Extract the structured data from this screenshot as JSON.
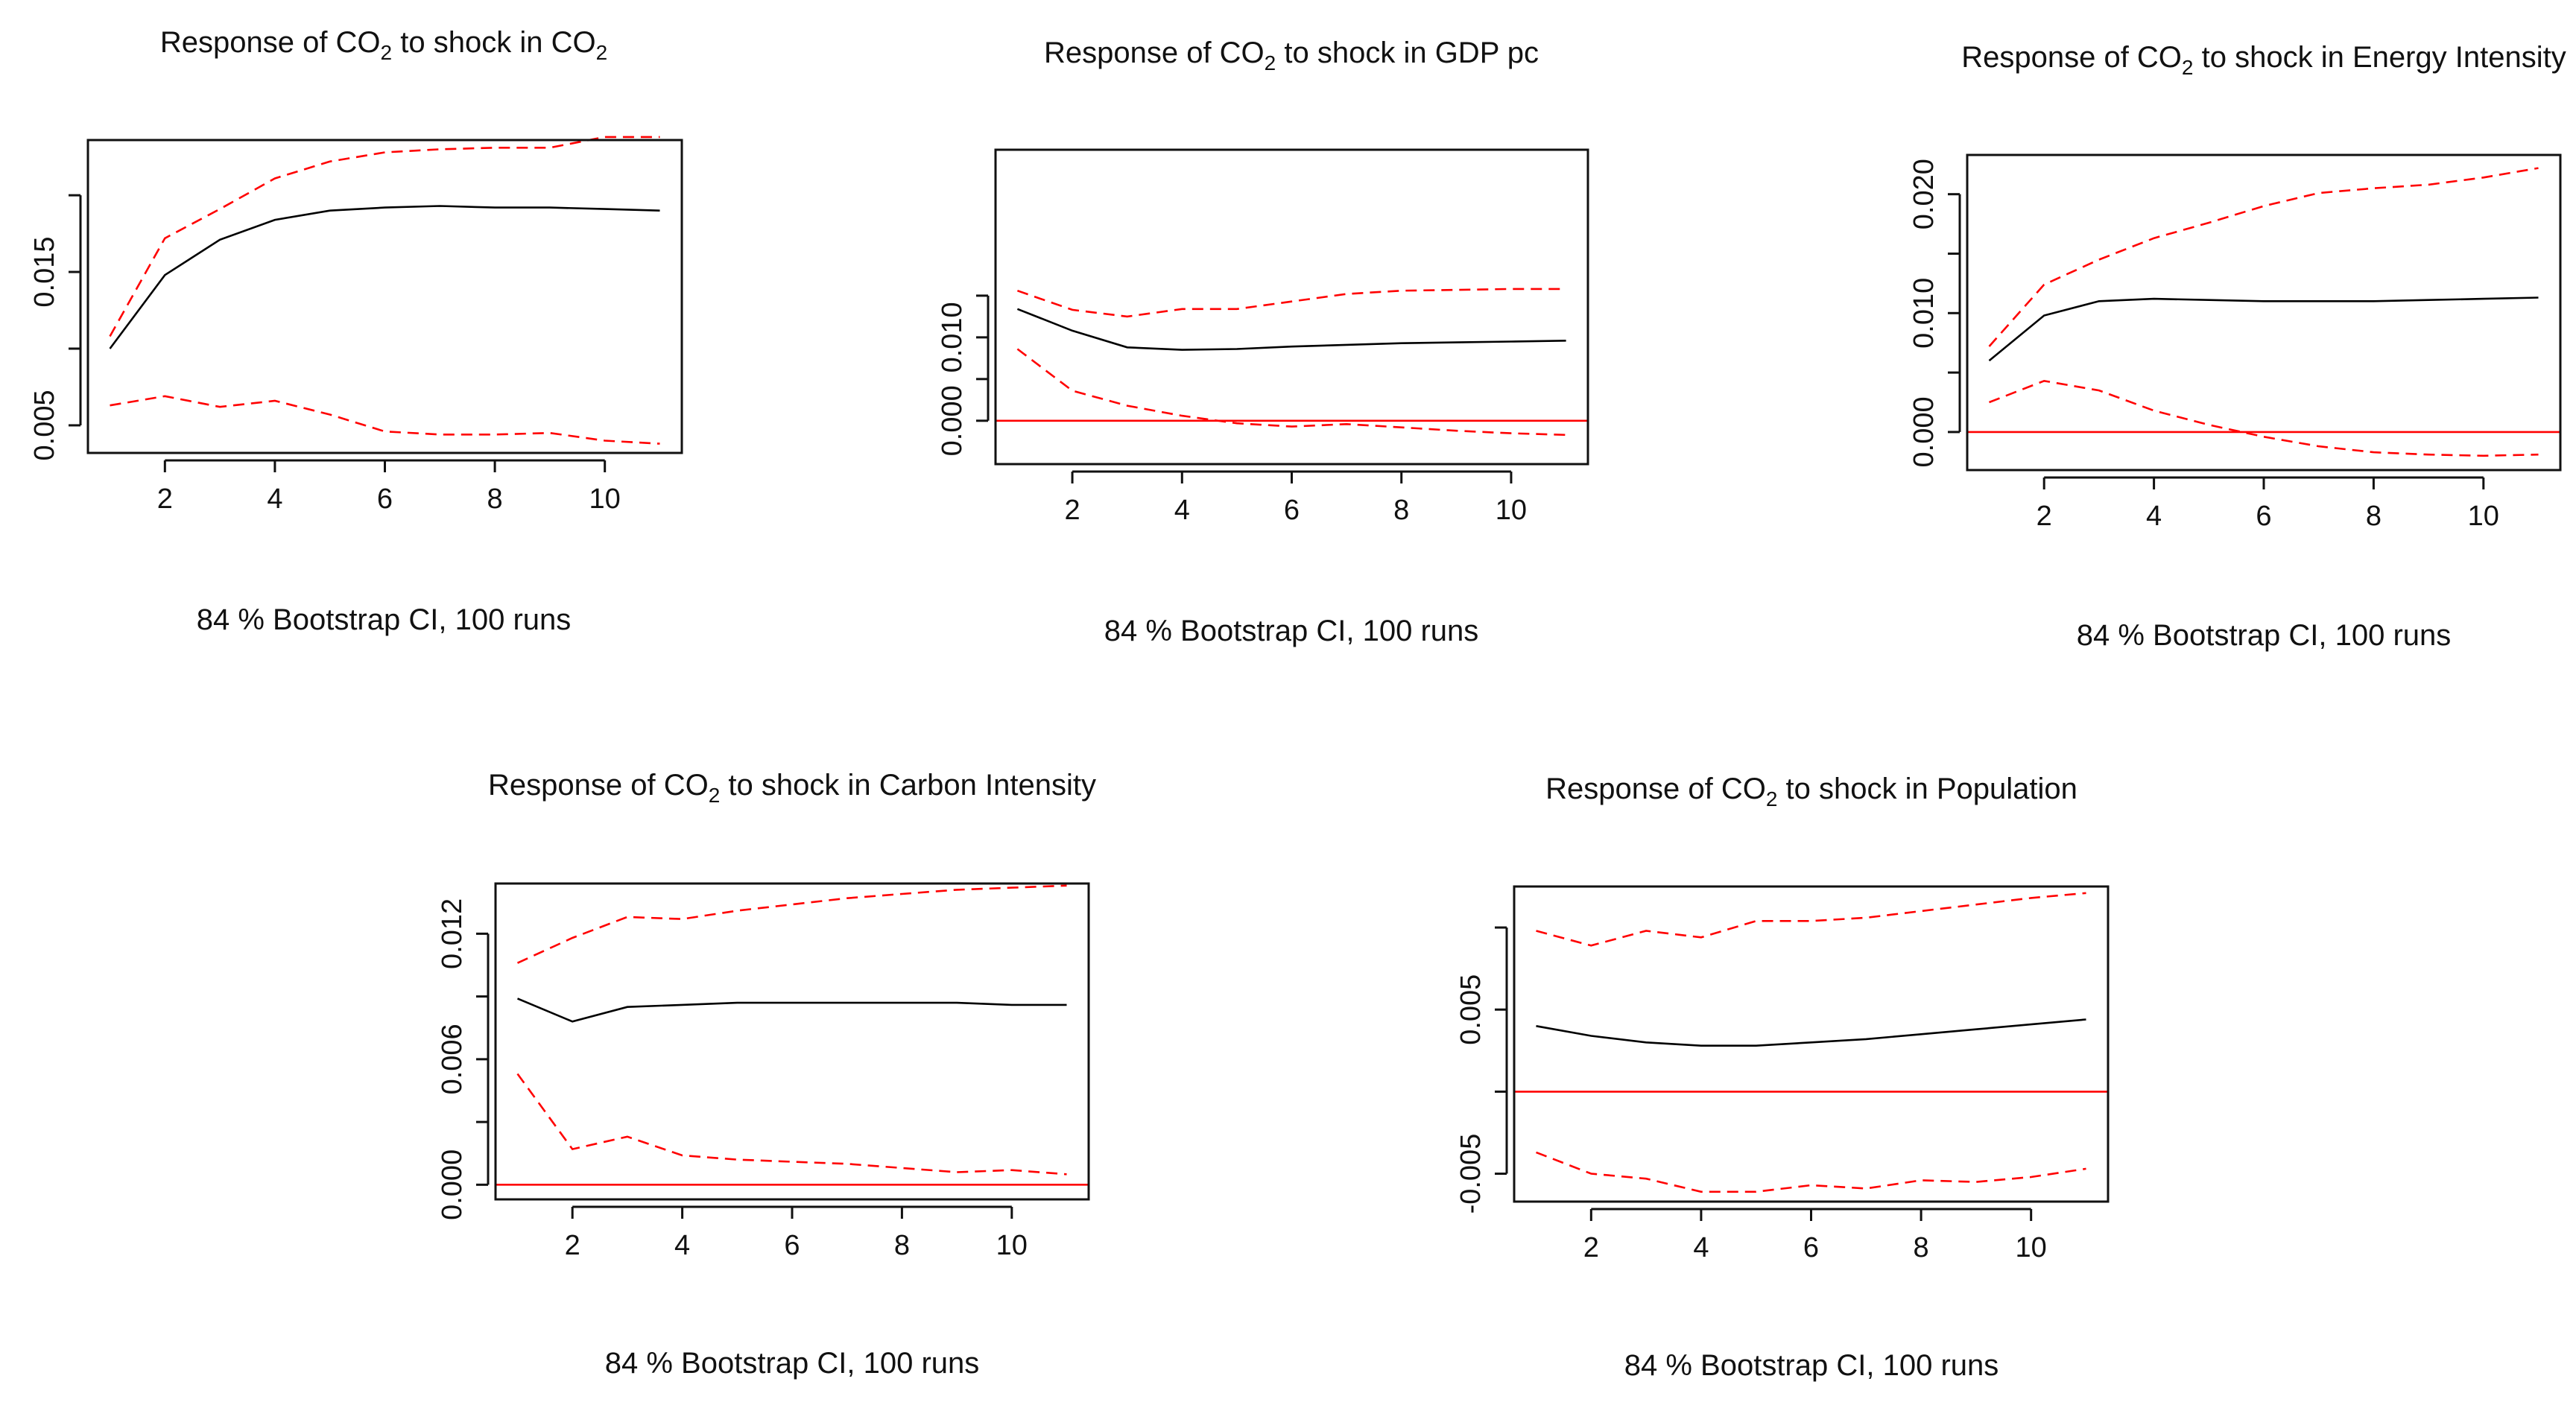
{
  "figure": {
    "title_prefix": "Response of CO",
    "title_sub": "2",
    "colors": {
      "estimate": "#000000",
      "ci": "#ff0000",
      "zero_line": "#ff0000",
      "axis": "#111111"
    }
  },
  "chart_data": [
    {
      "type": "line",
      "title": "Response of CO2 to shock in CO2",
      "title_suffix": " to shock in CO",
      "title_tail_sub": "2",
      "caption": "84 % Bootstrap CI,  100 runs",
      "xlabel": "",
      "ylabel": "",
      "x": [
        1,
        2,
        3,
        4,
        5,
        6,
        7,
        8,
        9,
        10,
        11
      ],
      "xlim": [
        0.6,
        11.4
      ],
      "xticks": [
        2,
        4,
        6,
        8,
        10
      ],
      "xtick_labels": [
        "2",
        "4",
        "6",
        "8",
        "10"
      ],
      "ylim": [
        0.0032,
        0.0236
      ],
      "yticks": [
        0.005,
        0.01,
        0.015,
        0.02
      ],
      "ytick_labels": [
        "0.005",
        "",
        "0.015",
        ""
      ],
      "zero_line": false,
      "series": [
        {
          "name": "estimate",
          "style": "solid",
          "values": [
            0.01,
            0.0148,
            0.0171,
            0.0184,
            0.019,
            0.0192,
            0.0193,
            0.0192,
            0.0192,
            0.0191,
            0.019
          ]
        },
        {
          "name": "ci_upper",
          "style": "dashed",
          "values": [
            0.0108,
            0.0172,
            0.0191,
            0.0211,
            0.0222,
            0.0228,
            0.023,
            0.0231,
            0.0231,
            0.0238,
            0.0238
          ]
        },
        {
          "name": "ci_lower",
          "style": "dashed",
          "values": [
            0.0063,
            0.0069,
            0.0062,
            0.0066,
            0.0057,
            0.0046,
            0.0044,
            0.0044,
            0.0045,
            0.004,
            0.0038
          ]
        }
      ]
    },
    {
      "type": "line",
      "title": "Response of CO2 to shock in GDP pc",
      "title_suffix": " to shock in GDP pc",
      "title_tail_sub": "",
      "caption": "84 % Bootstrap CI,  100 runs",
      "xlabel": "",
      "ylabel": "",
      "x": [
        1,
        2,
        3,
        4,
        5,
        6,
        7,
        8,
        9,
        10,
        11
      ],
      "xlim": [
        0.6,
        11.4
      ],
      "xticks": [
        2,
        4,
        6,
        8,
        10
      ],
      "xtick_labels": [
        "2",
        "4",
        "6",
        "8",
        "10"
      ],
      "ylim": [
        -0.0052,
        0.0325
      ],
      "yticks": [
        0.0,
        0.005,
        0.01,
        0.015
      ],
      "ytick_labels": [
        "0.000",
        "",
        "0.010",
        ""
      ],
      "zero_line": true,
      "series": [
        {
          "name": "estimate",
          "style": "solid",
          "values": [
            0.0134,
            0.0108,
            0.0088,
            0.0085,
            0.0086,
            0.0089,
            0.0091,
            0.0093,
            0.0094,
            0.0095,
            0.0096
          ]
        },
        {
          "name": "ci_upper",
          "style": "dashed",
          "values": [
            0.0156,
            0.0133,
            0.0125,
            0.0134,
            0.0134,
            0.0143,
            0.0152,
            0.0156,
            0.0157,
            0.0158,
            0.0158
          ]
        },
        {
          "name": "ci_lower",
          "style": "dashed",
          "values": [
            0.0086,
            0.0036,
            0.0018,
            0.0006,
            -0.0003,
            -0.0007,
            -0.0004,
            -0.0008,
            -0.0012,
            -0.0015,
            -0.0017
          ]
        }
      ]
    },
    {
      "type": "line",
      "title": "Response of CO2 to shock in Energy Intensity",
      "title_suffix": " to shock in Energy Intensity",
      "title_tail_sub": "",
      "caption": "84 % Bootstrap CI,  100 runs",
      "xlabel": "",
      "ylabel": "",
      "x": [
        1,
        2,
        3,
        4,
        5,
        6,
        7,
        8,
        9,
        10,
        11
      ],
      "xlim": [
        0.6,
        11.4
      ],
      "xticks": [
        2,
        4,
        6,
        8,
        10
      ],
      "xtick_labels": [
        "2",
        "4",
        "6",
        "8",
        "10"
      ],
      "ylim": [
        -0.0032,
        0.0233
      ],
      "yticks": [
        0.0,
        0.005,
        0.01,
        0.015,
        0.02
      ],
      "ytick_labels": [
        "0.000",
        "",
        "0.010",
        "",
        "0.020"
      ],
      "zero_line": true,
      "series": [
        {
          "name": "estimate",
          "style": "solid",
          "values": [
            0.006,
            0.0098,
            0.011,
            0.0112,
            0.0111,
            0.011,
            0.011,
            0.011,
            0.0111,
            0.0112,
            0.0113
          ]
        },
        {
          "name": "ci_upper",
          "style": "dashed",
          "values": [
            0.0072,
            0.0124,
            0.0145,
            0.0163,
            0.0176,
            0.019,
            0.0201,
            0.0205,
            0.0208,
            0.0214,
            0.0222
          ]
        },
        {
          "name": "ci_lower",
          "style": "dashed",
          "values": [
            0.0025,
            0.0043,
            0.0035,
            0.0018,
            0.0006,
            -0.0004,
            -0.0012,
            -0.0017,
            -0.0019,
            -0.002,
            -0.0019
          ]
        }
      ]
    },
    {
      "type": "line",
      "title": "Response of CO2 to shock in Carbon Intensity",
      "title_suffix": " to shock in Carbon Intensity",
      "title_tail_sub": "",
      "caption": "84 % Bootstrap CI,  100 runs",
      "xlabel": "",
      "ylabel": "",
      "x": [
        1,
        2,
        3,
        4,
        5,
        6,
        7,
        8,
        9,
        10,
        11
      ],
      "xlim": [
        0.6,
        11.4
      ],
      "xticks": [
        2,
        4,
        6,
        8,
        10
      ],
      "xtick_labels": [
        "2",
        "4",
        "6",
        "8",
        "10"
      ],
      "ylim": [
        -0.0007,
        0.0144
      ],
      "yticks": [
        0.0,
        0.003,
        0.006,
        0.009,
        0.012
      ],
      "ytick_labels": [
        "0.000",
        "",
        "0.006",
        "",
        "0.012"
      ],
      "zero_line": true,
      "series": [
        {
          "name": "estimate",
          "style": "solid",
          "values": [
            0.0089,
            0.0078,
            0.0085,
            0.0086,
            0.0087,
            0.0087,
            0.0087,
            0.0087,
            0.0087,
            0.0086,
            0.0086
          ]
        },
        {
          "name": "ci_upper",
          "style": "dashed",
          "values": [
            0.0106,
            0.0118,
            0.0128,
            0.0127,
            0.0131,
            0.0134,
            0.0137,
            0.0139,
            0.0141,
            0.0142,
            0.0143
          ]
        },
        {
          "name": "ci_lower",
          "style": "dashed",
          "values": [
            0.0053,
            0.0017,
            0.0023,
            0.0014,
            0.0012,
            0.0011,
            0.001,
            0.0008,
            0.0006,
            0.0007,
            0.0005
          ]
        }
      ]
    },
    {
      "type": "line",
      "title": "Response of CO2 to shock in Population",
      "title_suffix": " to shock in Population",
      "title_tail_sub": "",
      "caption": "84 % Bootstrap CI,  100 runs",
      "xlabel": "",
      "ylabel": "",
      "x": [
        1,
        2,
        3,
        4,
        5,
        6,
        7,
        8,
        9,
        10,
        11
      ],
      "xlim": [
        0.6,
        11.4
      ],
      "xticks": [
        2,
        4,
        6,
        8,
        10
      ],
      "xtick_labels": [
        "2",
        "4",
        "6",
        "8",
        "10"
      ],
      "ylim": [
        -0.0067,
        0.0125
      ],
      "yticks": [
        -0.005,
        0.0,
        0.005,
        0.01
      ],
      "ytick_labels": [
        "-0.005",
        "",
        "0.005",
        ""
      ],
      "zero_line": true,
      "series": [
        {
          "name": "estimate",
          "style": "solid",
          "values": [
            0.004,
            0.0034,
            0.003,
            0.0028,
            0.0028,
            0.003,
            0.0032,
            0.0035,
            0.0038,
            0.0041,
            0.0044
          ]
        },
        {
          "name": "ci_upper",
          "style": "dashed",
          "values": [
            0.0098,
            0.0089,
            0.0098,
            0.0094,
            0.0104,
            0.0104,
            0.0106,
            0.011,
            0.0114,
            0.0118,
            0.0121
          ]
        },
        {
          "name": "ci_lower",
          "style": "dashed",
          "values": [
            -0.0037,
            -0.005,
            -0.0053,
            -0.0061,
            -0.0061,
            -0.0057,
            -0.0059,
            -0.0054,
            -0.0055,
            -0.0052,
            -0.0047
          ]
        }
      ]
    }
  ]
}
